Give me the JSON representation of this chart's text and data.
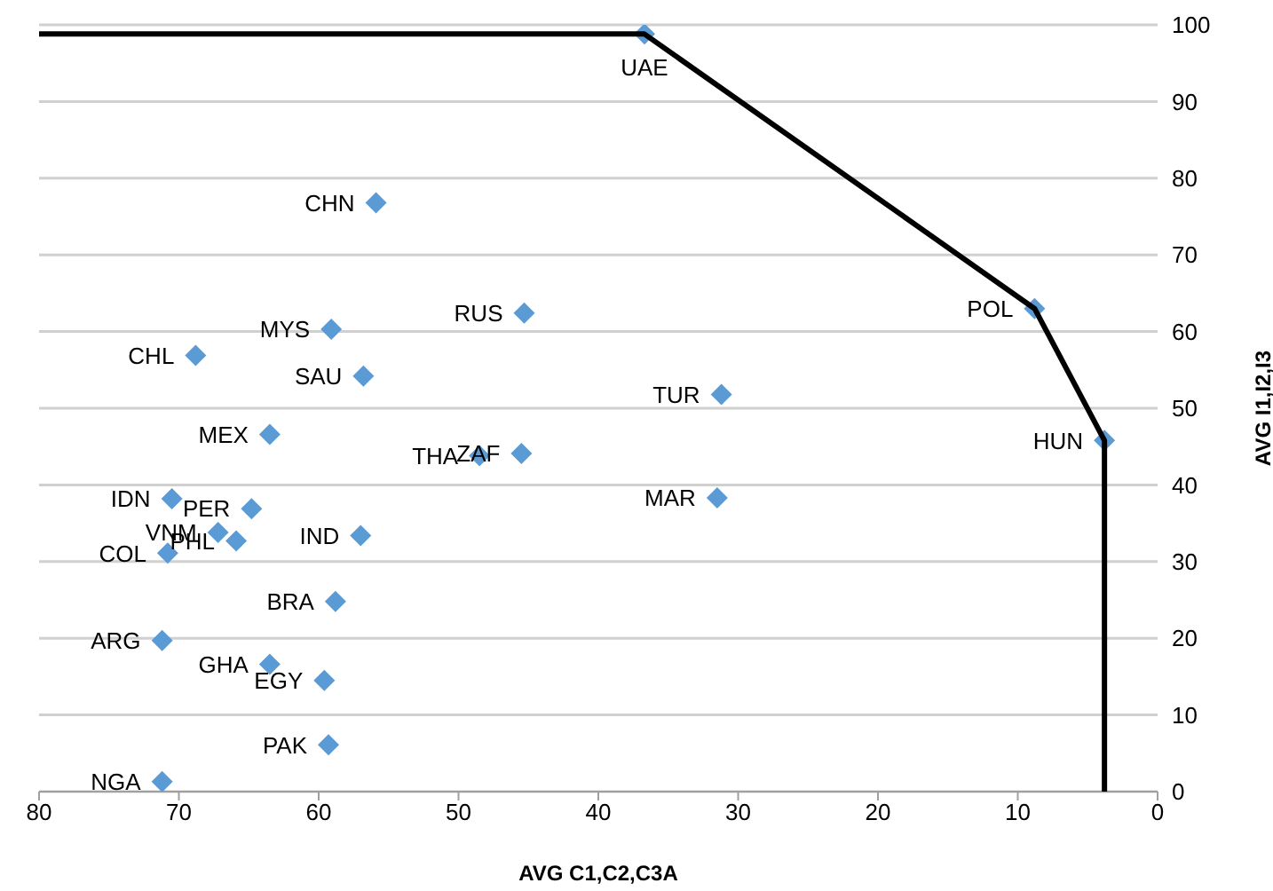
{
  "chart_data": {
    "type": "scatter",
    "xlabel": "AVG C1,C2,C3A",
    "ylabel": "AVG I1,I2,I3",
    "xlim": [
      80,
      0
    ],
    "xticks": [
      80,
      70,
      60,
      50,
      40,
      30,
      20,
      10,
      0
    ],
    "ylim": [
      0,
      100
    ],
    "yticks": [
      0,
      10,
      20,
      30,
      40,
      50,
      60,
      70,
      80,
      90,
      100
    ],
    "grid": "y",
    "legend": false,
    "series": [
      {
        "color": "#5b9bd5",
        "marker": "diamond",
        "x": [
          36.7,
          55.9,
          45.3,
          8.8,
          3.8,
          31.2,
          31.5,
          45.5,
          48.5,
          59.1,
          68.8,
          56.8,
          63.5,
          70.5,
          64.8,
          67.2,
          65.9,
          70.8,
          57.0,
          58.8,
          71.2,
          63.5,
          59.6,
          59.3,
          71.2
        ],
        "values": [
          98.8,
          76.8,
          62.4,
          63,
          45.8,
          51.8,
          38.3,
          44.1,
          43.8,
          60.3,
          56.9,
          54.2,
          46.6,
          38.2,
          36.9,
          33.8,
          32.7,
          31.1,
          33.4,
          24.8,
          19.7,
          16.6,
          14.5,
          6.1,
          1.3
        ]
      },
      {
        "type": "line",
        "color": "#000000",
        "marker": "none",
        "x": [
          80,
          36.7,
          8.8,
          3.8,
          3.8
        ],
        "values": [
          98.8,
          98.8,
          63,
          45.8,
          0
        ]
      }
    ],
    "annotations": [
      {
        "text": "UAE",
        "x": 36.7,
        "y": 98.8
      },
      {
        "text": "CHN",
        "x": 55.9,
        "y": 76.8
      },
      {
        "text": "RUS",
        "x": 45.3,
        "y": 62.4
      },
      {
        "text": "POL",
        "x": 8.8,
        "y": 63
      },
      {
        "text": "HUN",
        "x": 3.8,
        "y": 45.8
      },
      {
        "text": "TUR",
        "x": 31.2,
        "y": 51.8
      },
      {
        "text": "MAR",
        "x": 31.5,
        "y": 38.3
      },
      {
        "text": "ZAF",
        "x": 45.5,
        "y": 44.1
      },
      {
        "text": "THA",
        "x": 48.5,
        "y": 43.8
      },
      {
        "text": "MYS",
        "x": 59.1,
        "y": 60.3
      },
      {
        "text": "CHL",
        "x": 68.8,
        "y": 56.9
      },
      {
        "text": "SAU",
        "x": 56.8,
        "y": 54.2
      },
      {
        "text": "MEX",
        "x": 63.5,
        "y": 46.6
      },
      {
        "text": "IDN",
        "x": 70.5,
        "y": 38.2
      },
      {
        "text": "PER",
        "x": 64.8,
        "y": 36.9
      },
      {
        "text": "VNM",
        "x": 67.2,
        "y": 33.8
      },
      {
        "text": "PHL",
        "x": 65.9,
        "y": 32.7
      },
      {
        "text": "COL",
        "x": 70.8,
        "y": 31.1
      },
      {
        "text": "IND",
        "x": 57.0,
        "y": 33.4
      },
      {
        "text": "BRA",
        "x": 58.8,
        "y": 24.8
      },
      {
        "text": "ARG",
        "x": 71.2,
        "y": 19.7
      },
      {
        "text": "GHA",
        "x": 63.5,
        "y": 16.6
      },
      {
        "text": "EGY",
        "x": 59.6,
        "y": 14.5
      },
      {
        "text": "PAK",
        "x": 59.3,
        "y": 6.1
      },
      {
        "text": "NGA",
        "x": 71.2,
        "y": 1.3
      }
    ]
  }
}
